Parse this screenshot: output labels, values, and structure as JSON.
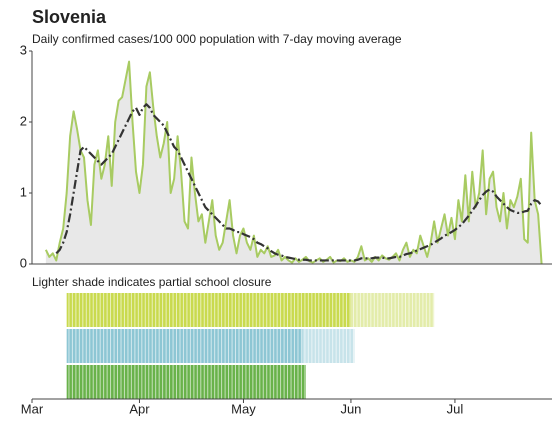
{
  "chart_data": {
    "type": "line",
    "title": "Slovenia",
    "subtitle": "Daily confirmed cases/100 000 population with 7-day moving average",
    "annotation": "Lighter shade indicates partial school closure",
    "xlim": [
      0,
      150
    ],
    "ylim": [
      0,
      3
    ],
    "yticks": [
      0,
      1,
      2,
      3
    ],
    "xticks": [
      {
        "value": 0,
        "label": "Mar"
      },
      {
        "value": 31,
        "label": "Apr"
      },
      {
        "value": 61,
        "label": "May"
      },
      {
        "value": 92,
        "label": "Jun"
      },
      {
        "value": 122,
        "label": "Jul"
      }
    ],
    "x": [
      4,
      5,
      6,
      7,
      8,
      9,
      10,
      11,
      12,
      13,
      14,
      15,
      16,
      17,
      18,
      19,
      20,
      21,
      22,
      23,
      24,
      25,
      26,
      27,
      28,
      29,
      30,
      31,
      32,
      33,
      34,
      35,
      36,
      37,
      38,
      39,
      40,
      41,
      42,
      43,
      44,
      45,
      46,
      47,
      48,
      49,
      50,
      51,
      52,
      53,
      54,
      55,
      56,
      57,
      58,
      59,
      60,
      61,
      62,
      63,
      64,
      65,
      66,
      67,
      68,
      69,
      70,
      71,
      72,
      73,
      74,
      75,
      76,
      77,
      78,
      79,
      80,
      81,
      82,
      83,
      84,
      85,
      86,
      87,
      88,
      89,
      90,
      91,
      92,
      93,
      94,
      95,
      96,
      97,
      98,
      99,
      100,
      101,
      102,
      103,
      104,
      105,
      106,
      107,
      108,
      109,
      110,
      111,
      112,
      113,
      114,
      115,
      116,
      117,
      118,
      119,
      120,
      121,
      122,
      123,
      124,
      125,
      126,
      127,
      128,
      129,
      130,
      131,
      132,
      133,
      134,
      135,
      136,
      137,
      138,
      139,
      140,
      141,
      142,
      143,
      144,
      145,
      146,
      147
    ],
    "series": [
      {
        "color": "#a8cb62",
        "fill": "#e8e8e8",
        "dashed": false,
        "values": [
          0.2,
          0.1,
          0.15,
          0.05,
          0.3,
          0.5,
          1.0,
          1.8,
          2.15,
          1.9,
          1.6,
          1.5,
          0.9,
          0.55,
          1.4,
          1.6,
          1.2,
          1.4,
          1.8,
          1.1,
          2.0,
          2.3,
          2.35,
          2.6,
          2.85,
          2.0,
          1.3,
          1.0,
          1.4,
          2.5,
          2.7,
          2.2,
          1.8,
          1.5,
          1.7,
          2.0,
          1.0,
          1.2,
          1.8,
          1.3,
          0.6,
          0.5,
          1.5,
          1.0,
          0.6,
          0.7,
          0.3,
          0.6,
          0.9,
          0.4,
          0.2,
          0.3,
          0.6,
          0.9,
          0.4,
          0.15,
          0.4,
          0.5,
          0.3,
          0.2,
          0.4,
          0.1,
          0.2,
          0.15,
          0.25,
          0.1,
          0.12,
          0.2,
          0.05,
          0.1,
          0.05,
          0.02,
          0.08,
          0.03,
          0.06,
          0.1,
          0.04,
          0.02,
          0.05,
          0.08,
          0.03,
          0.06,
          0.1,
          0.02,
          0.05,
          0.04,
          0.08,
          0.03,
          0.05,
          0.03,
          0.1,
          0.25,
          0.05,
          0.08,
          0.03,
          0.1,
          0.05,
          0.12,
          0.08,
          0.06,
          0.1,
          0.15,
          0.05,
          0.2,
          0.3,
          0.1,
          0.2,
          0.15,
          0.4,
          0.25,
          0.1,
          0.3,
          0.6,
          0.3,
          0.5,
          0.7,
          0.4,
          0.65,
          0.35,
          0.9,
          0.6,
          1.25,
          0.6,
          1.3,
          0.8,
          1.0,
          1.6,
          0.7,
          1.2,
          1.3,
          0.8,
          0.6,
          1.0,
          0.5,
          0.9,
          0.8,
          0.95,
          1.2,
          0.35,
          0.3,
          1.85,
          0.9,
          0.7,
          0.0
        ]
      },
      {
        "color": "#333333",
        "dashed": true,
        "values": [
          null,
          null,
          null,
          0.15,
          0.2,
          0.3,
          0.45,
          0.7,
          1.0,
          1.3,
          1.6,
          1.65,
          1.6,
          1.55,
          1.5,
          1.45,
          1.4,
          1.45,
          1.5,
          1.55,
          1.65,
          1.75,
          1.85,
          1.95,
          2.05,
          2.15,
          2.2,
          2.1,
          2.2,
          2.25,
          2.2,
          2.1,
          2.05,
          2.0,
          1.95,
          1.85,
          1.75,
          1.65,
          1.6,
          1.5,
          1.4,
          1.3,
          1.2,
          1.1,
          1.0,
          0.9,
          0.8,
          0.75,
          0.7,
          0.65,
          0.6,
          0.55,
          0.5,
          0.5,
          0.48,
          0.45,
          0.45,
          0.42,
          0.4,
          0.38,
          0.35,
          0.3,
          0.28,
          0.25,
          0.22,
          0.18,
          0.15,
          0.13,
          0.12,
          0.1,
          0.09,
          0.08,
          0.07,
          0.06,
          0.06,
          0.06,
          0.05,
          0.05,
          0.05,
          0.05,
          0.05,
          0.05,
          0.05,
          0.05,
          0.05,
          0.05,
          0.05,
          0.05,
          0.05,
          0.05,
          0.06,
          0.08,
          0.08,
          0.08,
          0.08,
          0.09,
          0.09,
          0.09,
          0.08,
          0.08,
          0.09,
          0.1,
          0.1,
          0.12,
          0.14,
          0.15,
          0.17,
          0.19,
          0.21,
          0.23,
          0.25,
          0.27,
          0.3,
          0.33,
          0.36,
          0.4,
          0.42,
          0.45,
          0.48,
          0.52,
          0.56,
          0.62,
          0.68,
          0.75,
          0.82,
          0.9,
          0.97,
          1.02,
          1.05,
          1.02,
          0.95,
          0.9,
          0.85,
          0.8,
          0.76,
          0.74,
          0.72,
          0.72,
          0.74,
          0.75,
          0.85,
          0.9,
          0.88,
          0.82
        ]
      }
    ],
    "closures": [
      {
        "color": "#c9da4e",
        "partial_color": "#e3ecaa",
        "full": [
          10,
          92
        ],
        "partial": [
          92,
          116
        ]
      },
      {
        "color": "#8dc6d4",
        "partial_color": "#c7e3ea",
        "full": [
          10,
          78
        ],
        "partial": [
          78,
          93
        ]
      },
      {
        "color": "#69b24a",
        "full": [
          10,
          79
        ]
      }
    ]
  }
}
